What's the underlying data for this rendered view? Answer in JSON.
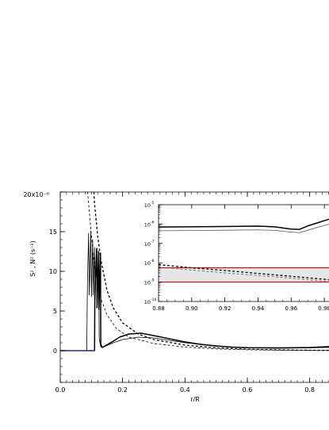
{
  "chart_data": [
    {
      "type": "line",
      "xlabel": "r/R",
      "ylabel": "S² , N² (s⁻²)",
      "xlim": [
        0.0,
        0.9
      ],
      "ylim": [
        -4,
        20
      ],
      "y_scale_label": "20x10⁻⁶",
      "xticks": [
        0.0,
        0.2,
        0.4,
        0.6,
        0.8
      ],
      "xtick_labels": [
        "0.0",
        "0.2",
        "0.4",
        "0.6",
        "0.8"
      ],
      "yticks": [
        0,
        5,
        10,
        15
      ],
      "ytick_labels": [
        "0",
        "5",
        "10",
        "15"
      ],
      "grid": false,
      "series": [
        {
          "style": "solid-thick",
          "color": "#000000",
          "x": [
            0.0,
            0.11,
            0.111,
            0.117,
            0.118,
            0.123,
            0.124,
            0.129,
            0.13,
            0.135,
            0.17,
            0.19,
            0.22,
            0.26,
            0.3,
            0.35,
            0.4,
            0.45,
            0.5,
            0.55,
            0.6,
            0.7,
            0.8,
            0.88,
            0.9
          ],
          "y": [
            0,
            0,
            7.8,
            12.9,
            5.4,
            12.5,
            5.2,
            12.3,
            0.8,
            0.4,
            1.2,
            1.7,
            2.1,
            2.2,
            1.9,
            1.5,
            1.1,
            0.8,
            0.6,
            0.45,
            0.38,
            0.35,
            0.4,
            0.55,
            0.6
          ]
        },
        {
          "style": "solid-thin",
          "color": "#000000",
          "x": [
            0.0,
            0.085,
            0.087,
            0.091,
            0.093,
            0.098,
            0.1,
            0.104,
            0.106,
            0.11,
            0.112,
            0.116,
            0.118,
            0.123,
            0.125,
            0.13,
            0.135,
            0.17,
            0.2,
            0.25,
            0.3,
            0.4,
            0.5,
            0.6,
            0.7,
            0.8,
            0.9
          ],
          "y": [
            0,
            0,
            8,
            14.8,
            7,
            15.1,
            6.8,
            14,
            7,
            13,
            6.5,
            12.8,
            6,
            12,
            1.5,
            0.5,
            0.4,
            1.0,
            1.4,
            1.7,
            1.6,
            1.0,
            0.55,
            0.35,
            0.3,
            0.35,
            0.45
          ]
        },
        {
          "style": "dashed-thick",
          "color": "#000000",
          "x": [
            0.108,
            0.11,
            0.12,
            0.13,
            0.15,
            0.17,
            0.2,
            0.25,
            0.3,
            0.4,
            0.5,
            0.6,
            0.7,
            0.8,
            0.9
          ],
          "y": [
            20,
            18.5,
            14.5,
            11.5,
            7.6,
            5.4,
            3.5,
            2.1,
            1.4,
            0.7,
            0.35,
            0.18,
            0.1,
            0.05,
            0.03
          ]
        },
        {
          "style": "dashed-thin",
          "color": "#000000",
          "x": [
            0.088,
            0.09,
            0.1,
            0.11,
            0.13,
            0.15,
            0.18,
            0.22,
            0.3,
            0.4,
            0.5,
            0.6,
            0.7,
            0.8,
            0.9
          ],
          "y": [
            20,
            19,
            14.5,
            10.5,
            6.6,
            4.5,
            2.8,
            1.7,
            0.9,
            0.45,
            0.22,
            0.11,
            0.06,
            0.03,
            0.02
          ]
        },
        {
          "style": "baseline",
          "color": "#2a3fbf",
          "x": [
            0.0,
            0.11
          ],
          "y": [
            0,
            0
          ]
        }
      ]
    },
    {
      "type": "line",
      "inset": true,
      "xlim": [
        0.88,
        0.99
      ],
      "ylim_exponent": [
        -10,
        -5
      ],
      "y_scale": "log",
      "xticks": [
        0.88,
        0.9,
        0.92,
        0.94,
        0.96,
        0.98
      ],
      "xtick_labels": [
        "0.88",
        "0.90",
        "0.92",
        "0.94",
        "0.96",
        "0.98"
      ],
      "ytick_exponents": [
        -10,
        -9,
        -8,
        -7,
        -6,
        -5
      ],
      "ytick_base": "10",
      "ytick_exponent_labels": [
        "-10",
        "-9",
        "-8",
        "-7",
        "-6",
        "-5"
      ],
      "band": {
        "lower": 1e-09,
        "upper": 5.5e-09,
        "fill": "#e6e6e6",
        "edge_color": "#d40000"
      },
      "series": [
        {
          "style": "solid-thick",
          "color": "#000000",
          "x": [
            0.88,
            0.9,
            0.92,
            0.94,
            0.95,
            0.96,
            0.965,
            0.97,
            0.98,
            0.99
          ],
          "y": [
            7e-07,
            7.2e-07,
            7.5e-07,
            7.8e-07,
            7.2e-07,
            5.5e-07,
            5.3e-07,
            8e-07,
            1.5e-06,
            2.8e-06
          ]
        },
        {
          "style": "solid-thin",
          "color": "#555555",
          "x": [
            0.88,
            0.9,
            0.92,
            0.94,
            0.95,
            0.96,
            0.965,
            0.97,
            0.98,
            0.99
          ],
          "y": [
            4.5e-07,
            4.6e-07,
            4.8e-07,
            5e-07,
            4.7e-07,
            3.8e-07,
            3.6e-07,
            4.8e-07,
            8.5e-07,
            1.5e-06
          ]
        },
        {
          "style": "dashed-thick",
          "color": "#000000",
          "x": [
            0.88,
            0.9,
            0.92,
            0.94,
            0.96,
            0.98,
            0.99
          ],
          "y": [
            8e-09,
            5.5e-09,
            4e-09,
            2.8e-09,
            2e-09,
            1.4e-09,
            1.1e-09
          ]
        },
        {
          "style": "dashed-thin",
          "color": "#555555",
          "x": [
            0.88,
            0.9,
            0.92,
            0.94,
            0.96,
            0.98,
            0.99
          ],
          "y": [
            6e-09,
            4.2e-09,
            3e-09,
            2.2e-09,
            1.6e-09,
            1.1e-09,
            9e-10
          ]
        }
      ]
    }
  ]
}
